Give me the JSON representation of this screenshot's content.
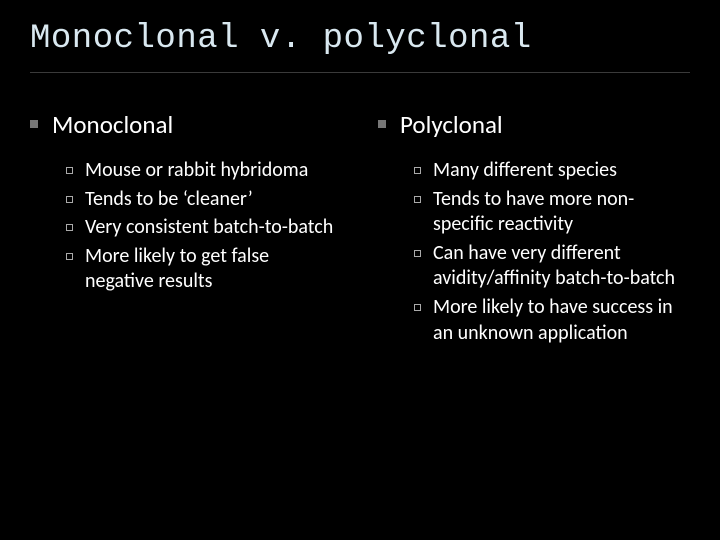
{
  "slide": {
    "title": "Monoclonal v. polyclonal",
    "title_color": "#d9e8f0",
    "title_fontsize": 34,
    "title_fontfamily": "Consolas, 'Courier New', monospace",
    "background_color": "#000000",
    "text_color": "#ffffff",
    "divider_color": "#3a3a3a",
    "bullet_solid_color": "#777777",
    "bullet_open_border": "#aaaaaa",
    "columns": [
      {
        "heading": "Monoclonal",
        "items": [
          "Mouse or rabbit hybridoma",
          "Tends to be ‘cleaner’",
          "Very consistent  batch-to-batch",
          "More likely to get false negative results"
        ]
      },
      {
        "heading": "Polyclonal",
        "items": [
          "Many different species",
          "Tends to have more non-specific reactivity",
          "Can have very different avidity/affinity batch-to-batch",
          "More likely to have success in an unknown application"
        ]
      }
    ],
    "heading_fontsize": 25,
    "item_fontsize": 20
  }
}
